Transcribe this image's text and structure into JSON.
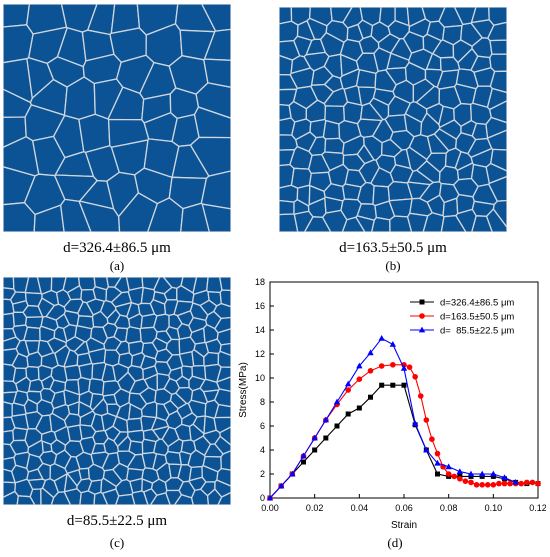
{
  "panels": [
    {
      "id": "a",
      "caption": "d=326.4±86.5 μm",
      "label": "(a)",
      "grains": 60,
      "seed": 11
    },
    {
      "id": "b",
      "caption": "d=163.5±50.5 μm",
      "label": "(b)",
      "grains": 190,
      "seed": 23
    },
    {
      "id": "c",
      "caption": "d=85.5±22.5 μm",
      "label": "(c)",
      "grains": 330,
      "seed": 37
    },
    {
      "id": "d",
      "label": "(d)"
    }
  ],
  "colors": {
    "grain": "#0b5394",
    "boundary": "#cfd6df"
  },
  "chart_data": {
    "type": "line",
    "xlabel": "Strain",
    "ylabel": "Stress(MPa)",
    "xlim": [
      0,
      0.12
    ],
    "ylim": [
      0,
      18
    ],
    "xticks": [
      "0.00",
      "0.02",
      "0.04",
      "0.06",
      "0.08",
      "0.10",
      "0.12"
    ],
    "yticks": [
      "0",
      "2",
      "4",
      "6",
      "8",
      "10",
      "12",
      "14",
      "16",
      "18"
    ],
    "legend_position": "top-right",
    "series": [
      {
        "name": "d=326.4±86.5 μm",
        "color": "#000000",
        "marker": "square",
        "x": [
          0,
          0.005,
          0.01,
          0.015,
          0.02,
          0.025,
          0.03,
          0.035,
          0.04,
          0.045,
          0.05,
          0.055,
          0.06,
          0.065,
          0.07,
          0.075,
          0.08,
          0.085,
          0.09,
          0.095,
          0.1,
          0.105,
          0.11,
          0.115,
          0.12
        ],
        "y": [
          0,
          1.0,
          2.0,
          3.0,
          4.0,
          5.0,
          6.0,
          7.0,
          7.5,
          8.4,
          9.4,
          9.4,
          9.4,
          6.1,
          4.0,
          2.0,
          1.8,
          1.8,
          1.8,
          1.8,
          1.8,
          1.6,
          1.3,
          1.2,
          1.2
        ]
      },
      {
        "name": "d=163.5±50.5 μm",
        "color": "#ff0000",
        "marker": "circle",
        "x": [
          0,
          0.005,
          0.01,
          0.015,
          0.02,
          0.025,
          0.03,
          0.035,
          0.04,
          0.045,
          0.05,
          0.055,
          0.06,
          0.0625,
          0.065,
          0.0675,
          0.07,
          0.0725,
          0.075,
          0.0775,
          0.08,
          0.0825,
          0.085,
          0.0875,
          0.09,
          0.0925,
          0.095,
          0.0975,
          0.1,
          0.1025,
          0.105,
          0.1075,
          0.11,
          0.1125,
          0.115,
          0.1175,
          0.12
        ],
        "y": [
          0,
          1.0,
          2.0,
          3.5,
          5.0,
          6.5,
          7.8,
          9.0,
          9.9,
          10.6,
          11.0,
          11.1,
          11.1,
          10.9,
          10.1,
          8.5,
          6.5,
          4.9,
          3.7,
          2.6,
          2.0,
          1.8,
          1.6,
          1.4,
          1.3,
          1.1,
          1.1,
          1.1,
          1.1,
          1.2,
          1.2,
          1.2,
          1.2,
          1.2,
          1.3,
          1.3,
          1.2
        ]
      },
      {
        "name": "d=  85.5±22.5 μm",
        "color": "#0000ff",
        "marker": "triangle",
        "x": [
          0,
          0.005,
          0.01,
          0.015,
          0.02,
          0.025,
          0.03,
          0.035,
          0.04,
          0.045,
          0.05,
          0.055,
          0.06,
          0.065,
          0.07,
          0.075,
          0.08,
          0.085,
          0.09,
          0.095,
          0.1,
          0.105,
          0.11
        ],
        "y": [
          0,
          1.0,
          2.0,
          3.5,
          5.0,
          6.5,
          8.0,
          9.5,
          11.0,
          12.1,
          13.3,
          12.8,
          10.8,
          6.2,
          4.0,
          2.9,
          2.6,
          2.2,
          2.0,
          2.0,
          2.0,
          1.7,
          1.3
        ]
      }
    ]
  }
}
